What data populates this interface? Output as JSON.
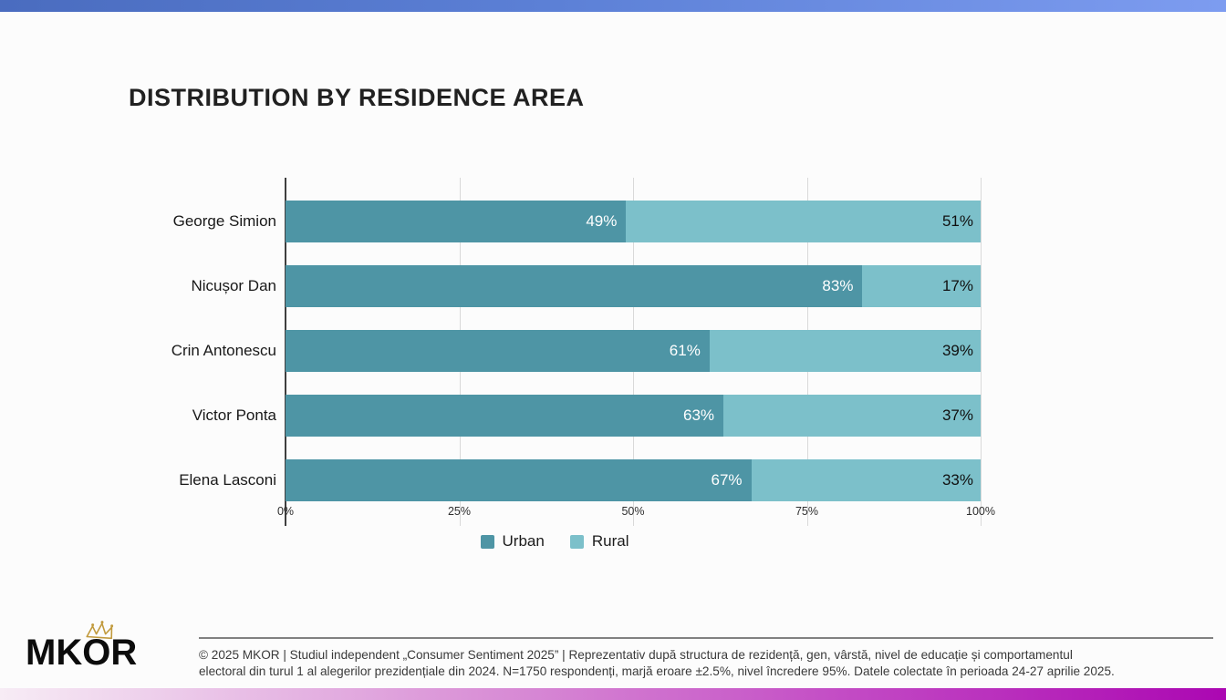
{
  "title": "DISTRIBUTION BY RESIDENCE AREA",
  "accent_colors": {
    "top_bar_left": "#4a6cbf",
    "top_bar_right": "#7d9cf0",
    "bottom_bar_left": "#f7ecf5",
    "bottom_bar_right": "#ab07b2",
    "urban": "#4e95a5",
    "rural": "#7cc0ca",
    "crown_gold": "#c19a3d"
  },
  "chart_data": {
    "type": "bar",
    "orientation": "horizontal",
    "stacked": true,
    "title": "DISTRIBUTION BY RESIDENCE AREA",
    "categories": [
      "George Simion",
      "Nicușor Dan",
      "Crin Antonescu",
      "Victor Ponta",
      "Elena Lasconi"
    ],
    "series": [
      {
        "name": "Urban",
        "color": "#4e95a5",
        "values": [
          49,
          83,
          61,
          63,
          67
        ]
      },
      {
        "name": "Rural",
        "color": "#7cc0ca",
        "values": [
          51,
          17,
          39,
          37,
          33
        ]
      }
    ],
    "value_suffix": "%",
    "xlim": [
      0,
      100
    ],
    "xticks": [
      "0%",
      "25%",
      "50%",
      "75%",
      "100%"
    ],
    "grid": "vertical-quarter-lines",
    "legend_position": "bottom"
  },
  "footer": {
    "logo_text": "MKOR",
    "crown_icon": "crown-doodle",
    "line1": "© 2025 MKOR | Studiul independent „Consumer Sentiment 2025” | Reprezentativ după structura de rezidență, gen, vârstă, nivel de educație și comportamentul",
    "line2": "electoral din turul 1 al alegerilor prezidențiale din 2024. N=1750 respondenți, marjă eroare ±2.5%, nivel încredere 95%. Datele colectate în perioada 24-27 aprilie 2025."
  }
}
